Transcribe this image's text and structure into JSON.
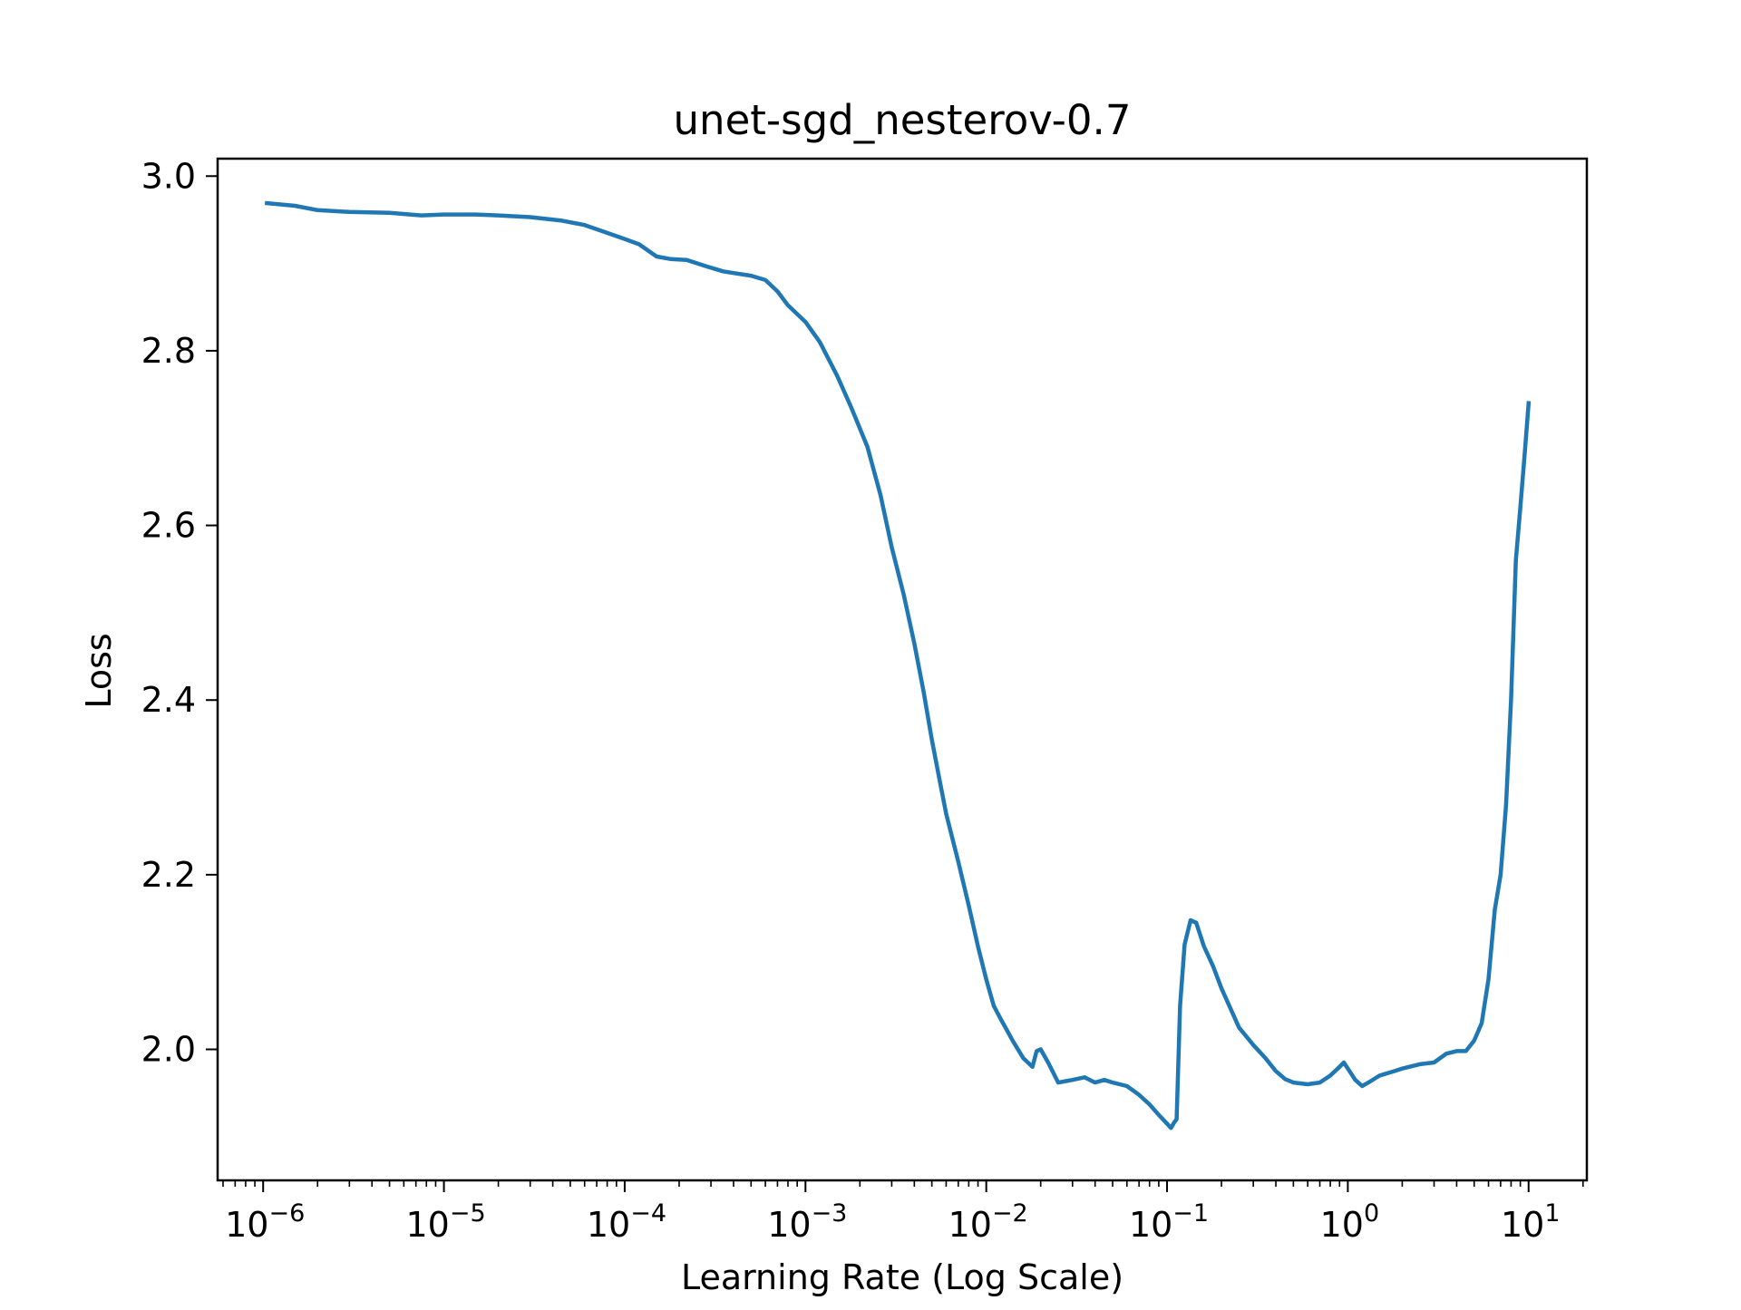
{
  "chart_data": {
    "type": "line",
    "title": "unet-sgd_nesterov-0.7",
    "xlabel": "Learning Rate (Log Scale)",
    "ylabel": "Loss",
    "xscale": "log",
    "xlim": [
      5.6e-07,
      21
    ],
    "ylim": [
      1.85,
      3.02
    ],
    "grid": false,
    "line_color": "#1f77b4",
    "x_ticks": [
      {
        "value": 1e-06,
        "base": "10",
        "exp": "−6"
      },
      {
        "value": 1e-05,
        "base": "10",
        "exp": "−5"
      },
      {
        "value": 0.0001,
        "base": "10",
        "exp": "−4"
      },
      {
        "value": 0.001,
        "base": "10",
        "exp": "−3"
      },
      {
        "value": 0.01,
        "base": "10",
        "exp": "−2"
      },
      {
        "value": 0.1,
        "base": "10",
        "exp": "−1"
      },
      {
        "value": 1,
        "base": "10",
        "exp": "0"
      },
      {
        "value": 10,
        "base": "10",
        "exp": "1"
      }
    ],
    "y_ticks": [
      {
        "value": 2.0,
        "label": "2.0"
      },
      {
        "value": 2.2,
        "label": "2.2"
      },
      {
        "value": 2.4,
        "label": "2.4"
      },
      {
        "value": 2.6,
        "label": "2.6"
      },
      {
        "value": 2.8,
        "label": "2.8"
      },
      {
        "value": 3.0,
        "label": "3.0"
      }
    ],
    "series": [
      {
        "x": [
          1.05e-06,
          1.5e-06,
          2e-06,
          3e-06,
          5e-06,
          7.5e-06,
          1e-05,
          1.5e-05,
          2e-05,
          3e-05,
          4.5e-05,
          6e-05,
          8e-05,
          0.0001,
          0.00012,
          0.00015,
          0.00018,
          0.00022,
          0.00028,
          0.00035,
          0.0004,
          0.0005,
          0.0006,
          0.0007,
          0.0008,
          0.001,
          0.0012,
          0.0015,
          0.0018,
          0.0022,
          0.0026,
          0.003,
          0.0035,
          0.004,
          0.0045,
          0.005,
          0.0055,
          0.006,
          0.007,
          0.008,
          0.009,
          0.01,
          0.011,
          0.012,
          0.014,
          0.016,
          0.018,
          0.019,
          0.02,
          0.022,
          0.025,
          0.03,
          0.035,
          0.04,
          0.045,
          0.05,
          0.06,
          0.07,
          0.08,
          0.09,
          0.1,
          0.105,
          0.11,
          0.113,
          0.118,
          0.125,
          0.135,
          0.145,
          0.16,
          0.18,
          0.2,
          0.25,
          0.3,
          0.35,
          0.4,
          0.45,
          0.5,
          0.6,
          0.7,
          0.8,
          0.9,
          0.95,
          1.0,
          1.1,
          1.2,
          1.3,
          1.5,
          1.8,
          2.0,
          2.5,
          3.0,
          3.5,
          4.0,
          4.5,
          5.0,
          5.5,
          6.0,
          6.5,
          7.0,
          7.5,
          8.0,
          8.5,
          9.0,
          9.5,
          10.0
        ],
        "y": [
          2.969,
          2.966,
          2.961,
          2.959,
          2.958,
          2.955,
          2.956,
          2.956,
          2.955,
          2.953,
          2.949,
          2.944,
          2.935,
          2.928,
          2.922,
          2.908,
          2.905,
          2.904,
          2.897,
          2.891,
          2.889,
          2.886,
          2.881,
          2.868,
          2.852,
          2.833,
          2.81,
          2.771,
          2.734,
          2.69,
          2.635,
          2.575,
          2.52,
          2.465,
          2.41,
          2.355,
          2.31,
          2.27,
          2.215,
          2.165,
          2.118,
          2.08,
          2.05,
          2.035,
          2.01,
          1.99,
          1.98,
          1.998,
          2.0,
          1.985,
          1.962,
          1.965,
          1.968,
          1.962,
          1.965,
          1.962,
          1.958,
          1.948,
          1.937,
          1.925,
          1.915,
          1.91,
          1.917,
          1.92,
          2.05,
          2.12,
          2.148,
          2.145,
          2.118,
          2.095,
          2.07,
          2.025,
          2.005,
          1.99,
          1.975,
          1.966,
          1.962,
          1.96,
          1.962,
          1.97,
          1.98,
          1.985,
          1.978,
          1.965,
          1.958,
          1.962,
          1.97,
          1.975,
          1.978,
          1.983,
          1.985,
          1.995,
          1.998,
          1.998,
          2.01,
          2.03,
          2.08,
          2.16,
          2.2,
          2.28,
          2.4,
          2.56,
          2.62,
          2.68,
          2.74
        ]
      }
    ]
  }
}
